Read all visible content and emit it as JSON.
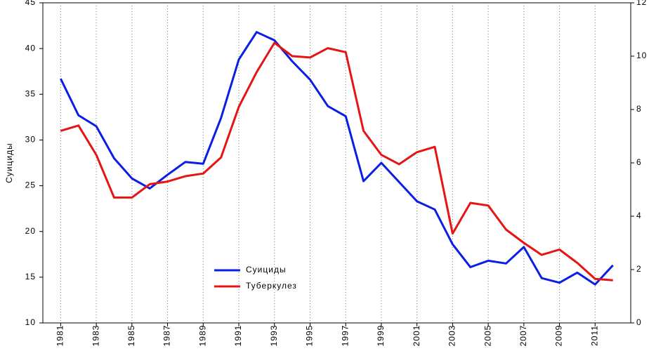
{
  "chart_data": {
    "type": "line",
    "y_label": "Суициды",
    "x": [
      1981,
      1982,
      1983,
      1984,
      1985,
      1986,
      1987,
      1988,
      1989,
      1990,
      1991,
      1992,
      1993,
      1994,
      1995,
      1996,
      1997,
      1998,
      1999,
      2000,
      2001,
      2002,
      2003,
      2004,
      2005,
      2006,
      2007,
      2008,
      2009,
      2010,
      2011,
      2012
    ],
    "xlim": [
      1980,
      2013
    ],
    "xticks": [
      1981,
      1983,
      1985,
      1987,
      1989,
      1991,
      1993,
      1995,
      1997,
      1999,
      2001,
      2003,
      2005,
      2007,
      2009,
      2011
    ],
    "ylim": [
      10,
      45
    ],
    "yticks": [
      10,
      15,
      20,
      25,
      30,
      35,
      40,
      45
    ],
    "y2lim": [
      0,
      12
    ],
    "y2ticks": [
      0,
      2,
      4,
      6,
      8,
      10,
      12
    ],
    "grid": true,
    "legend": "lower center",
    "series": [
      {
        "name": "Суициды",
        "color": "#0a1ee6",
        "values": [
          36.7,
          32.7,
          31.5,
          28.0,
          25.8,
          24.7,
          26.2,
          27.6,
          27.4,
          32.4,
          38.8,
          41.8,
          40.9,
          38.6,
          36.6,
          33.7,
          32.6,
          25.5,
          27.5,
          25.4,
          23.3,
          22.4,
          18.6,
          16.1,
          16.8,
          16.5,
          18.3,
          14.9,
          14.4,
          15.5,
          14.2,
          16.3
        ]
      },
      {
        "name": "Туберкулез",
        "color": "#e61414",
        "axis": "y2",
        "values": [
          7.2,
          7.4,
          6.3,
          4.7,
          4.7,
          5.2,
          5.3,
          5.5,
          5.6,
          6.2,
          8.1,
          9.4,
          10.5,
          10.0,
          9.95,
          10.3,
          10.15,
          7.2,
          6.3,
          5.95,
          6.4,
          6.6,
          3.35,
          4.5,
          4.4,
          3.5,
          3.0,
          2.55,
          2.75,
          2.25,
          1.65,
          1.6
        ]
      }
    ]
  }
}
